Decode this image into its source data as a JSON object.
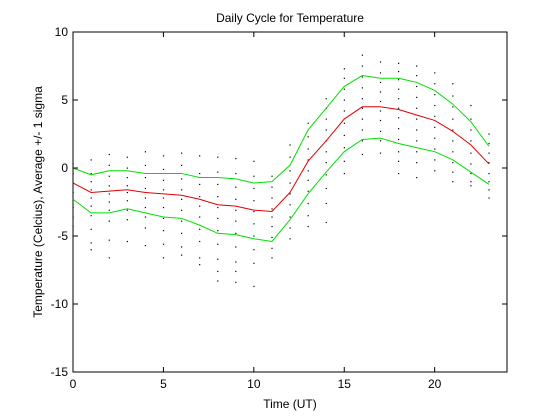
{
  "chart_data": {
    "type": "line",
    "title": "Daily Cycle for Temperature",
    "xlabel": "Time (UT)",
    "ylabel": "Temperature (Celcius), Average +/- 1 sigma",
    "xlim": [
      0,
      24
    ],
    "ylim": [
      -15,
      10
    ],
    "xticks": [
      0,
      5,
      10,
      15,
      20
    ],
    "yticks": [
      -15,
      -10,
      -5,
      0,
      5,
      10
    ],
    "grid": false,
    "box": true,
    "x": [
      0,
      1,
      2,
      3,
      4,
      5,
      6,
      7,
      8,
      9,
      10,
      11,
      12,
      13,
      14,
      15,
      16,
      17,
      18,
      19,
      20,
      21,
      22,
      23
    ],
    "series": [
      {
        "color": "#00e000",
        "style": "line",
        "values": [
          0.0,
          -0.5,
          -0.2,
          -0.2,
          -0.4,
          -0.4,
          -0.4,
          -0.7,
          -0.7,
          -0.8,
          -1.1,
          -1.0,
          0.2,
          2.8,
          4.4,
          6.0,
          6.8,
          6.6,
          6.6,
          6.3,
          5.7,
          4.7,
          3.4,
          1.6
        ]
      },
      {
        "color": "#e00000",
        "style": "line",
        "values": [
          -1.1,
          -1.8,
          -1.7,
          -1.6,
          -1.8,
          -1.9,
          -2.0,
          -2.3,
          -2.7,
          -2.8,
          -3.1,
          -3.2,
          -1.8,
          0.5,
          2.0,
          3.6,
          4.5,
          4.5,
          4.3,
          3.9,
          3.5,
          2.7,
          1.7,
          0.3
        ]
      },
      {
        "color": "#00e000",
        "style": "line",
        "values": [
          -2.3,
          -3.3,
          -3.3,
          -3.0,
          -3.3,
          -3.6,
          -3.7,
          -4.2,
          -4.8,
          -4.9,
          -5.2,
          -5.4,
          -3.8,
          -1.9,
          -0.3,
          1.2,
          2.1,
          2.2,
          1.8,
          1.5,
          1.2,
          0.6,
          -0.3,
          -1.2
        ]
      }
    ],
    "scatter": {
      "color": "#000000",
      "style": "dots",
      "points": [
        [
          0,
          0.3
        ],
        [
          0,
          -0.4
        ],
        [
          0,
          -1.1
        ],
        [
          0,
          -1.8
        ],
        [
          0,
          -2.3
        ],
        [
          0,
          -2.9
        ],
        [
          0,
          -3.6
        ],
        [
          0,
          -4.3
        ],
        [
          1,
          0.6
        ],
        [
          1,
          -0.4
        ],
        [
          1,
          -1.0
        ],
        [
          1,
          -1.6
        ],
        [
          1,
          -2.2
        ],
        [
          1,
          -2.8
        ],
        [
          1,
          -3.5
        ],
        [
          1,
          -4.5
        ],
        [
          1,
          -5.5
        ],
        [
          1,
          -6.0
        ],
        [
          2,
          1.0
        ],
        [
          2,
          0.2
        ],
        [
          2,
          -0.6
        ],
        [
          2,
          -1.3
        ],
        [
          2,
          -1.9
        ],
        [
          2,
          -2.5
        ],
        [
          2,
          -3.1
        ],
        [
          2,
          -3.9
        ],
        [
          2,
          -5.3
        ],
        [
          2,
          -6.6
        ],
        [
          3,
          0.8
        ],
        [
          3,
          0.0
        ],
        [
          3,
          -0.7
        ],
        [
          3,
          -1.3
        ],
        [
          3,
          -1.8
        ],
        [
          3,
          -2.4
        ],
        [
          3,
          -3.1
        ],
        [
          3,
          -3.8
        ],
        [
          3,
          -5.4
        ],
        [
          4,
          1.2
        ],
        [
          4,
          0.2
        ],
        [
          4,
          -0.7
        ],
        [
          4,
          -1.5
        ],
        [
          4,
          -2.2
        ],
        [
          4,
          -2.9
        ],
        [
          4,
          -3.6
        ],
        [
          4,
          -4.4
        ],
        [
          4,
          -5.7
        ],
        [
          5,
          0.9
        ],
        [
          5,
          -0.1
        ],
        [
          5,
          -0.9
        ],
        [
          5,
          -1.6
        ],
        [
          5,
          -2.2
        ],
        [
          5,
          -2.9
        ],
        [
          5,
          -3.7
        ],
        [
          5,
          -4.6
        ],
        [
          5,
          -5.6
        ],
        [
          5,
          -6.6
        ],
        [
          6,
          1.1
        ],
        [
          6,
          0.2
        ],
        [
          6,
          -0.8
        ],
        [
          6,
          -1.6
        ],
        [
          6,
          -2.3
        ],
        [
          6,
          -3.1
        ],
        [
          6,
          -3.9
        ],
        [
          6,
          -4.8
        ],
        [
          6,
          -5.8
        ],
        [
          6,
          -6.4
        ],
        [
          7,
          0.9
        ],
        [
          7,
          -0.4
        ],
        [
          7,
          -1.2
        ],
        [
          7,
          -2.1
        ],
        [
          7,
          -2.8
        ],
        [
          7,
          -3.6
        ],
        [
          7,
          -4.5
        ],
        [
          7,
          -5.4
        ],
        [
          7,
          -6.6
        ],
        [
          7,
          -7.1
        ],
        [
          8,
          0.8
        ],
        [
          8,
          -0.3
        ],
        [
          8,
          -1.2
        ],
        [
          8,
          -2.1
        ],
        [
          8,
          -2.9
        ],
        [
          8,
          -3.7
        ],
        [
          8,
          -4.6
        ],
        [
          8,
          -5.6
        ],
        [
          8,
          -6.7
        ],
        [
          8,
          -7.6
        ],
        [
          8,
          -8.3
        ],
        [
          9,
          0.7
        ],
        [
          9,
          -0.4
        ],
        [
          9,
          -1.4
        ],
        [
          9,
          -2.3
        ],
        [
          9,
          -3.1
        ],
        [
          9,
          -3.9
        ],
        [
          9,
          -4.8
        ],
        [
          9,
          -5.8
        ],
        [
          9,
          -6.9
        ],
        [
          9,
          -7.6
        ],
        [
          9,
          -8.4
        ],
        [
          10,
          0.5
        ],
        [
          10,
          -0.6
        ],
        [
          10,
          -1.5
        ],
        [
          10,
          -2.4
        ],
        [
          10,
          -3.2
        ],
        [
          10,
          -4.1
        ],
        [
          10,
          -5.0
        ],
        [
          10,
          -6.0
        ],
        [
          10,
          -7.0
        ],
        [
          10,
          -8.7
        ],
        [
          11,
          -0.6
        ],
        [
          11,
          -1.4
        ],
        [
          11,
          -2.2
        ],
        [
          11,
          -3.0
        ],
        [
          11,
          -3.6
        ],
        [
          11,
          -4.3
        ],
        [
          11,
          -5.1
        ],
        [
          11,
          -5.9
        ],
        [
          11,
          -6.6
        ],
        [
          12,
          1.7
        ],
        [
          12,
          0.8
        ],
        [
          12,
          -0.2
        ],
        [
          12,
          -1.1
        ],
        [
          12,
          -1.9
        ],
        [
          12,
          -2.7
        ],
        [
          12,
          -3.6
        ],
        [
          12,
          -4.4
        ],
        [
          12,
          -5.2
        ],
        [
          13,
          3.3
        ],
        [
          13,
          2.3
        ],
        [
          13,
          1.4
        ],
        [
          13,
          0.6
        ],
        [
          13,
          -0.2
        ],
        [
          13,
          -0.9
        ],
        [
          13,
          -1.7
        ],
        [
          13,
          -2.6
        ],
        [
          13,
          -3.5
        ],
        [
          13,
          -4.3
        ],
        [
          14,
          5.1
        ],
        [
          14,
          4.4
        ],
        [
          14,
          3.6
        ],
        [
          14,
          2.8
        ],
        [
          14,
          2.0
        ],
        [
          14,
          1.2
        ],
        [
          14,
          0.4
        ],
        [
          14,
          -0.5
        ],
        [
          14,
          -1.5
        ],
        [
          14,
          -2.6
        ],
        [
          14,
          -4.0
        ],
        [
          15,
          7.3
        ],
        [
          15,
          6.6
        ],
        [
          15,
          5.8
        ],
        [
          15,
          5.0
        ],
        [
          15,
          4.2
        ],
        [
          15,
          3.3
        ],
        [
          15,
          2.4
        ],
        [
          15,
          1.5
        ],
        [
          15,
          0.5
        ],
        [
          15,
          -0.4
        ],
        [
          16,
          8.3
        ],
        [
          16,
          7.5
        ],
        [
          16,
          6.7
        ],
        [
          16,
          5.9
        ],
        [
          16,
          5.1
        ],
        [
          16,
          4.4
        ],
        [
          16,
          3.6
        ],
        [
          16,
          2.8
        ],
        [
          16,
          2.0
        ],
        [
          16,
          1.0
        ],
        [
          17,
          7.8
        ],
        [
          17,
          7.0
        ],
        [
          17,
          6.3
        ],
        [
          17,
          5.6
        ],
        [
          17,
          4.9
        ],
        [
          17,
          4.2
        ],
        [
          17,
          3.5
        ],
        [
          17,
          2.7
        ],
        [
          17,
          2.0
        ],
        [
          17,
          1.1
        ],
        [
          18,
          7.7
        ],
        [
          18,
          7.1
        ],
        [
          18,
          6.5
        ],
        [
          18,
          5.8
        ],
        [
          18,
          5.1
        ],
        [
          18,
          4.4
        ],
        [
          18,
          3.7
        ],
        [
          18,
          2.9
        ],
        [
          18,
          2.1
        ],
        [
          18,
          1.2
        ],
        [
          18,
          0.5
        ],
        [
          18,
          -0.4
        ],
        [
          19,
          7.5
        ],
        [
          19,
          6.8
        ],
        [
          19,
          6.0
        ],
        [
          19,
          5.2
        ],
        [
          19,
          4.4
        ],
        [
          19,
          3.6
        ],
        [
          19,
          2.8
        ],
        [
          19,
          2.0
        ],
        [
          19,
          1.2
        ],
        [
          19,
          0.4
        ],
        [
          19,
          -0.7
        ],
        [
          20,
          7.0
        ],
        [
          20,
          6.2
        ],
        [
          20,
          5.4
        ],
        [
          20,
          4.6
        ],
        [
          20,
          3.8
        ],
        [
          20,
          3.0
        ],
        [
          20,
          2.2
        ],
        [
          20,
          1.4
        ],
        [
          20,
          0.6
        ],
        [
          20,
          -0.2
        ],
        [
          21,
          6.2
        ],
        [
          21,
          5.3
        ],
        [
          21,
          4.5
        ],
        [
          21,
          3.6
        ],
        [
          21,
          2.8
        ],
        [
          21,
          2.0
        ],
        [
          21,
          1.2
        ],
        [
          21,
          0.4
        ],
        [
          21,
          -0.3
        ],
        [
          21,
          -1.0
        ],
        [
          22,
          4.6
        ],
        [
          22,
          3.6
        ],
        [
          22,
          2.8
        ],
        [
          22,
          2.0
        ],
        [
          22,
          1.1
        ],
        [
          22,
          0.3
        ],
        [
          22,
          -0.4
        ],
        [
          22,
          -1.0
        ],
        [
          22,
          -1.3
        ],
        [
          23,
          2.5
        ],
        [
          23,
          1.8
        ],
        [
          23,
          1.1
        ],
        [
          23,
          0.4
        ],
        [
          23,
          -0.4
        ],
        [
          23,
          -1.0
        ],
        [
          23,
          -1.6
        ],
        [
          23,
          -2.2
        ]
      ]
    }
  }
}
